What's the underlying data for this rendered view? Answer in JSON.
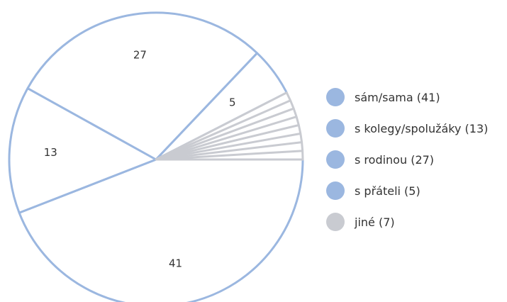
{
  "chart_data": {
    "type": "pie",
    "categories": [
      "sám/sama",
      "s kolegy/spolužáky",
      "s rodinou",
      "s přáteli",
      "jiné"
    ],
    "values": [
      41,
      13,
      27,
      5,
      7
    ],
    "slice_labels": [
      "41",
      "13",
      "27",
      "5",
      ""
    ],
    "colors": [
      "#9bb7e0",
      "#9bb7e0",
      "#9bb7e0",
      "#9bb7e0",
      "#c9cbd1"
    ],
    "legend": {
      "placement": "right",
      "entries": [
        "sám/sama (41)",
        "s kolegy/spolužáky (13)",
        "s rodinou (27)",
        "s přáteli (5)",
        "jiné (7)"
      ]
    }
  }
}
